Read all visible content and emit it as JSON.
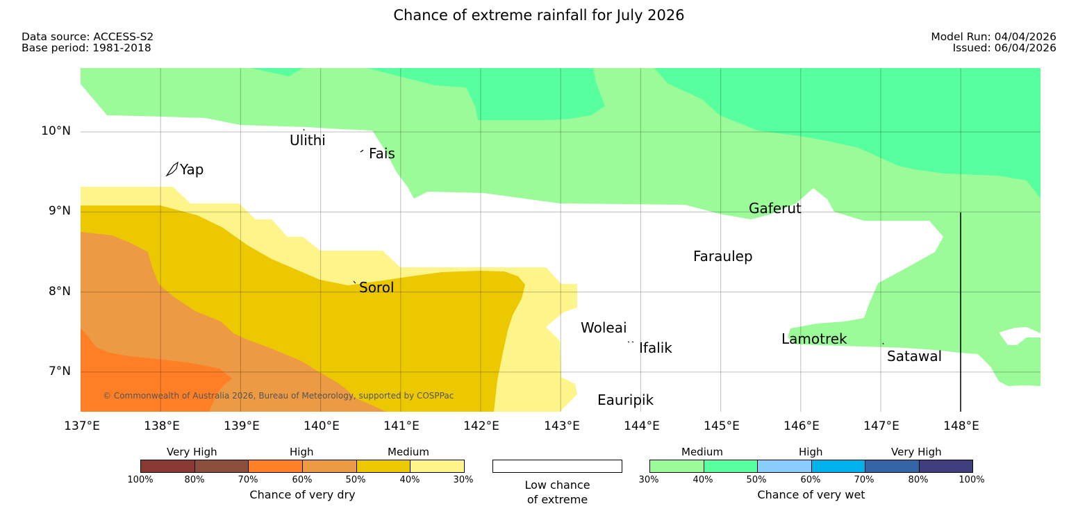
{
  "header": {
    "title": "Chance of extreme rainfall for July 2026",
    "data_source": "Data source: ACCESS-S2",
    "base_period": "Base period: 1981-2018",
    "model_run": "Model Run: 04/04/2026",
    "issued": "Issued: 06/04/2026"
  },
  "map": {
    "lat_labels": [
      "10°N",
      "9°N",
      "8°N",
      "7°N"
    ],
    "lon_labels": [
      "137°E",
      "138°E",
      "139°E",
      "140°E",
      "141°E",
      "142°E",
      "143°E",
      "144°E",
      "145°E",
      "146°E",
      "147°E",
      "148°E"
    ],
    "places": {
      "yap": "Yap",
      "ulithi": "Ulithi",
      "fais": "Fais",
      "gaferut": "Gaferut",
      "faraulep": "Faraulep",
      "sorol": "Sorol",
      "woleai": "Woleai",
      "ifalik": "Ifalik",
      "lamotrek": "Lamotrek",
      "satawal": "Satawal",
      "eauripik": "Eauripik"
    },
    "copyright": "© Commonwealth of Australia 2026, Bureau of Meteorology, supported by COSPPac",
    "colors": {
      "dry_70_100": "#ff7f27",
      "dry_60_70": "#ec9a44",
      "dry_40_50": "#ecc800",
      "dry_30_40": "#fdf58a",
      "wet_30_40": "#9bfb98",
      "wet_40_50": "#57ff9f"
    }
  },
  "legend": {
    "dry": {
      "categories": [
        "Very High",
        "High",
        "Medium"
      ],
      "ticks": [
        "100%",
        "80%",
        "70%",
        "60%",
        "50%",
        "40%",
        "30%"
      ],
      "colors": [
        "#8b3a33",
        "#8b4f3e",
        "#ff7f27",
        "#ec9a44",
        "#ecc800",
        "#fdf58a"
      ],
      "title": "Chance of very dry"
    },
    "low": {
      "line1": "Low chance",
      "line2": "of extreme"
    },
    "wet": {
      "categories": [
        "Medium",
        "High",
        "Very High"
      ],
      "ticks": [
        "30%",
        "40%",
        "50%",
        "60%",
        "70%",
        "80%",
        "100%"
      ],
      "colors": [
        "#9bfb98",
        "#57ff9f",
        "#88cdfc",
        "#00b2ee",
        "#3364a5",
        "#3e3f7c"
      ],
      "title": "Chance of very wet"
    }
  }
}
